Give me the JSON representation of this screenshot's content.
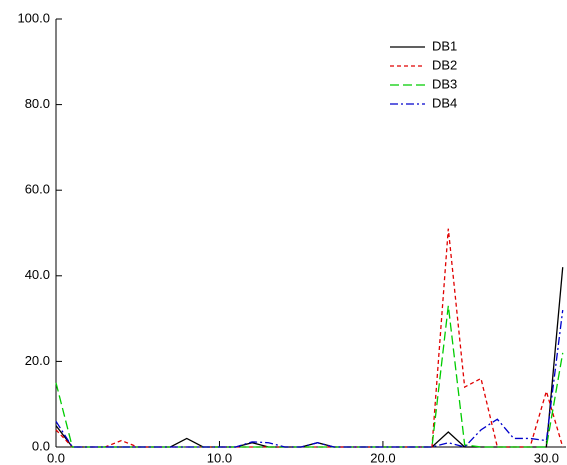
{
  "chart_data": {
    "type": "line",
    "x": [
      0,
      1,
      2,
      3,
      4,
      5,
      6,
      7,
      8,
      9,
      10,
      11,
      12,
      13,
      14,
      15,
      16,
      17,
      18,
      19,
      20,
      21,
      22,
      23,
      24,
      25,
      26,
      27,
      28,
      29,
      30,
      31
    ],
    "series": [
      {
        "name": "DB1",
        "color": "#000000",
        "linestyle": "solid",
        "values": [
          5,
          0,
          0,
          0,
          0,
          0,
          0,
          0,
          2,
          0,
          0,
          0,
          1,
          0,
          0,
          0,
          1,
          0,
          0,
          0,
          0,
          0,
          0,
          0,
          3.5,
          0,
          0,
          0,
          0,
          0,
          0,
          42
        ]
      },
      {
        "name": "DB2",
        "color": "#e00000",
        "linestyle": "dashed",
        "values": [
          4,
          0,
          0,
          0,
          1.5,
          0,
          0,
          0,
          0,
          0,
          0,
          0,
          0,
          0,
          0,
          0,
          0,
          0,
          0,
          0,
          0,
          0,
          0,
          0,
          51,
          14,
          16,
          0,
          0,
          0,
          13,
          0
        ]
      },
      {
        "name": "DB3",
        "color": "#00cc00",
        "linestyle": "longdash",
        "values": [
          15,
          0,
          0,
          0,
          0,
          0,
          0,
          0,
          0,
          0,
          0,
          0,
          0,
          0,
          0,
          0,
          0,
          0,
          0,
          0,
          0,
          0,
          0,
          0,
          33,
          0.5,
          0,
          0,
          0,
          0,
          0,
          22
        ]
      },
      {
        "name": "DB4",
        "color": "#0000cc",
        "linestyle": "dashdot",
        "values": [
          6,
          0,
          0,
          0,
          0,
          0,
          0,
          0,
          0,
          0,
          0,
          0,
          1.2,
          1,
          0,
          0,
          1,
          0,
          0,
          0,
          0,
          0,
          0,
          0,
          1,
          0,
          4,
          6.5,
          2,
          2,
          1.5,
          32
        ]
      }
    ],
    "xlim": [
      0,
      31.2
    ],
    "ylim": [
      0,
      100
    ],
    "xticks": [
      {
        "value": 0,
        "label": "0.0"
      },
      {
        "value": 10,
        "label": "10.0"
      },
      {
        "value": 20,
        "label": "20.0"
      },
      {
        "value": 30,
        "label": "30.0"
      }
    ],
    "yticks": [
      {
        "value": 0,
        "label": "0.0"
      },
      {
        "value": 20,
        "label": "20.0"
      },
      {
        "value": 40,
        "label": "40.0"
      },
      {
        "value": 60,
        "label": "60.0"
      },
      {
        "value": 80,
        "label": "80.0"
      },
      {
        "value": 100,
        "label": "100.0"
      }
    ],
    "legend": "upper right"
  }
}
